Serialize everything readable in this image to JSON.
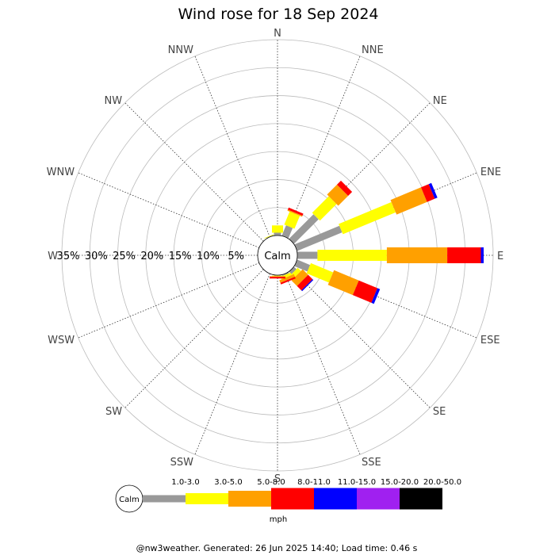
{
  "chart_data": {
    "type": "wind-rose",
    "title": "Wind rose for 18 Sep 2024",
    "directions": [
      "N",
      "NNE",
      "NE",
      "ENE",
      "E",
      "ESE",
      "SE",
      "SSE",
      "S",
      "SSW",
      "SW",
      "WSW",
      "W",
      "WNW",
      "NW",
      "NNW"
    ],
    "ring_labels": [
      "5%",
      "10%",
      "15%",
      "20%",
      "25%",
      "30%",
      "35%"
    ],
    "ring_values": [
      5,
      10,
      15,
      20,
      25,
      30,
      35
    ],
    "r_max": 35,
    "calm_label": "Calm",
    "unit": "mph",
    "speed_bins": [
      "1.0-3.0",
      "3.0-5.0",
      "5.0-8.0",
      "8.0-11.0",
      "11.0-15.0",
      "15.0-20.0",
      "20.0-50.0"
    ],
    "colors": {
      "1.0-3.0": "#999999",
      "3.0-5.0": "#ffff00",
      "5.0-8.0": "#ffa000",
      "8.0-11.0": "#ff0000",
      "11.0-15.0": "#0000ff",
      "15.0-20.0": "#a020f0",
      "20.0-50.0": "#000000"
    },
    "series": [
      {
        "direction": "NNW",
        "values": [
          0.1,
          0.1,
          0,
          0,
          0,
          0,
          0
        ]
      },
      {
        "direction": "N",
        "values": [
          0.5,
          1.3,
          0,
          0,
          0,
          0,
          0
        ]
      },
      {
        "direction": "NNE",
        "values": [
          2.0,
          2.5,
          0.2,
          0.4,
          0,
          0,
          0
        ]
      },
      {
        "direction": "NE",
        "values": [
          6.2,
          4.2,
          2.5,
          1.0,
          0,
          0,
          0
        ]
      },
      {
        "direction": "ENE",
        "values": [
          8.7,
          10.2,
          5.9,
          1.5,
          0.5,
          0,
          0
        ]
      },
      {
        "direction": "E",
        "values": [
          3.6,
          12.4,
          10.8,
          6.0,
          0.5,
          0,
          0
        ]
      },
      {
        "direction": "ESE",
        "values": [
          2.5,
          4.3,
          4.8,
          3.6,
          0.5,
          0,
          0
        ]
      },
      {
        "direction": "SE",
        "values": [
          0.6,
          0.8,
          1.4,
          1.1,
          0.2,
          0,
          0
        ]
      },
      {
        "direction": "SSE",
        "values": [
          0.2,
          0.5,
          0.5,
          0.3,
          0,
          0,
          0
        ]
      },
      {
        "direction": "S",
        "values": [
          0.1,
          0.1,
          0.1,
          0.3,
          0,
          0,
          0
        ]
      }
    ]
  },
  "footer": "@nw3weather. Generated: 26 Jun 2025 14:40; Load time: 0.46 s"
}
